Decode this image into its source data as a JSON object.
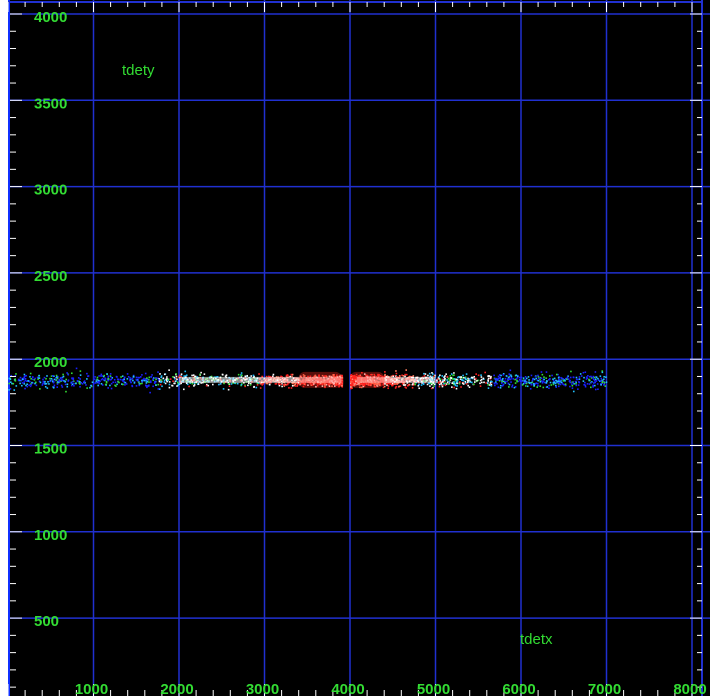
{
  "chart_data": {
    "type": "heatmap",
    "xlabel": "tdetx",
    "ylabel": "tdety",
    "xlim": [
      0,
      8000
    ],
    "ylim": [
      0,
      4000
    ],
    "x_ticks": [
      1000,
      2000,
      3000,
      4000,
      5000,
      6000,
      7000,
      8000
    ],
    "x_tick_labels": [
      "1000",
      "2000",
      "3000",
      "4000",
      "5000",
      "6000",
      "7000",
      "8000"
    ],
    "y_ticks": [
      500,
      1000,
      1500,
      2000,
      2500,
      3000,
      3500,
      4000
    ],
    "y_tick_labels": [
      "500",
      "1000",
      "1500",
      "2000",
      "2500",
      "3000",
      "3500",
      "4000"
    ],
    "grid": true,
    "background": "#000000",
    "grid_color": "#2030d0",
    "label_color": "#33dd33",
    "colormap": [
      "#1a20ff",
      "#20c0ff",
      "#33dd33",
      "#ff2020",
      "#ff8060",
      "#ffffff"
    ],
    "bands": [
      {
        "x": [
          0,
          3900
        ],
        "y_center": 1880,
        "peak_x": 3300,
        "density": "high near gap, fading to left"
      },
      {
        "x": [
          4000,
          7000
        ],
        "y_center": 1880,
        "peak_x": 4500,
        "density": "high near gap, fading to right"
      }
    ],
    "gap_x": [
      3920,
      3980
    ]
  }
}
